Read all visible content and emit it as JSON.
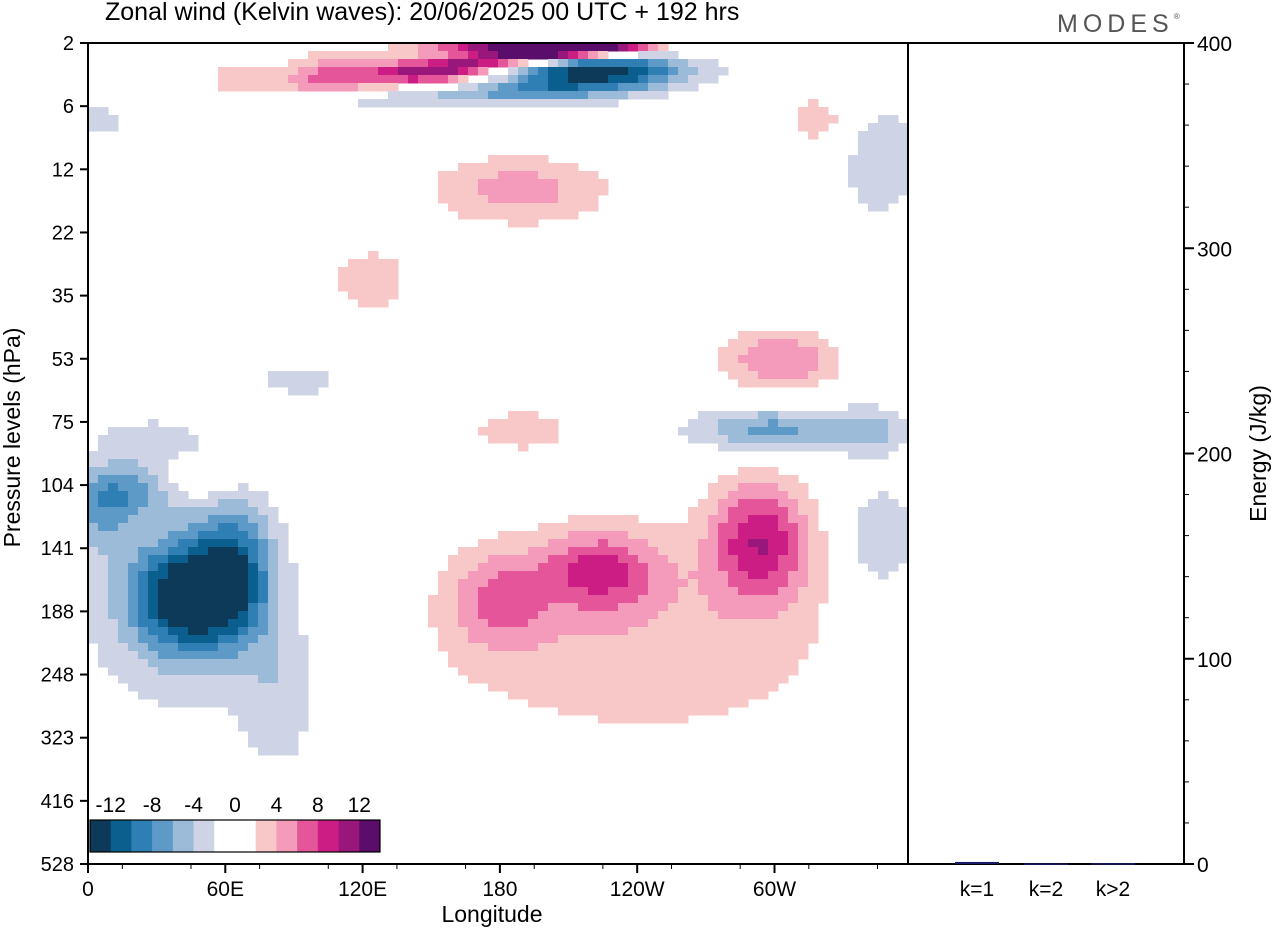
{
  "header": {
    "title": "Zonal wind (Kelvin waves):  20/06/2025  00 UTC  + 192 hrs",
    "brand": "MODES",
    "brand_mark": "®"
  },
  "colors": {
    "scale": [
      "#0d3a59",
      "#0a5f8f",
      "#2f7fb5",
      "#5e9ac8",
      "#9bbbd9",
      "#cfd3e6",
      "#ffffff",
      "#ffffff",
      "#f8c8c8",
      "#f49bbb",
      "#e5559a",
      "#cc1d85",
      "#99167a",
      "#5a0d6b"
    ],
    "bar": "#1a1a66"
  },
  "chart_data": [
    {
      "type": "heatmap",
      "title": "Zonal wind (Kelvin waves)",
      "xlabel": "Longitude",
      "ylabel": "Pressure levels (hPa)",
      "xticks": [
        "0",
        "60E",
        "120E",
        "180",
        "120W",
        "60W"
      ],
      "yticks": [
        "2",
        "6",
        "12",
        "22",
        "35",
        "53",
        "75",
        "104",
        "141",
        "188",
        "248",
        "323",
        "416",
        "528"
      ],
      "colorbar_labels": [
        "-12",
        "-8",
        "-4",
        "0",
        "4",
        "8",
        "12"
      ],
      "colorbar_levels": [
        -14,
        -12,
        -10,
        -8,
        -6,
        -4,
        -2,
        0,
        2,
        4,
        6,
        8,
        10,
        12,
        14
      ],
      "features": [
        {
          "lon": 40,
          "hpa": 170,
          "value": -12
        },
        {
          "lon": 55,
          "hpa": 140,
          "value": -9
        },
        {
          "lon": 20,
          "hpa": 115,
          "value": -6
        },
        {
          "lon": 200,
          "hpa": 4,
          "value": -12
        },
        {
          "lon": 180,
          "hpa": 5,
          "value": -7
        },
        {
          "lon": 185,
          "hpa": 2.5,
          "value": 12
        },
        {
          "lon": 145,
          "hpa": 4,
          "value": 9
        },
        {
          "lon": 290,
          "hpa": 140,
          "value": 8
        },
        {
          "lon": 230,
          "hpa": 145,
          "value": 6
        },
        {
          "lon": 190,
          "hpa": 170,
          "value": 4
        },
        {
          "lon": 175,
          "hpa": 15,
          "value": 6
        },
        {
          "lon": 285,
          "hpa": 60,
          "value": 5
        },
        {
          "lon": 290,
          "hpa": 85,
          "value": -6
        },
        {
          "lon": 5,
          "hpa": 7,
          "value": -5
        }
      ]
    },
    {
      "type": "bar",
      "categories": [
        "k=1",
        "k=2",
        "k>2"
      ],
      "values": [
        1.0,
        0.3,
        0.4
      ],
      "ylabel": "Energy (J/kg)",
      "ylim": [
        0,
        400
      ],
      "yticks": [
        0,
        100,
        200,
        300,
        400
      ]
    }
  ]
}
